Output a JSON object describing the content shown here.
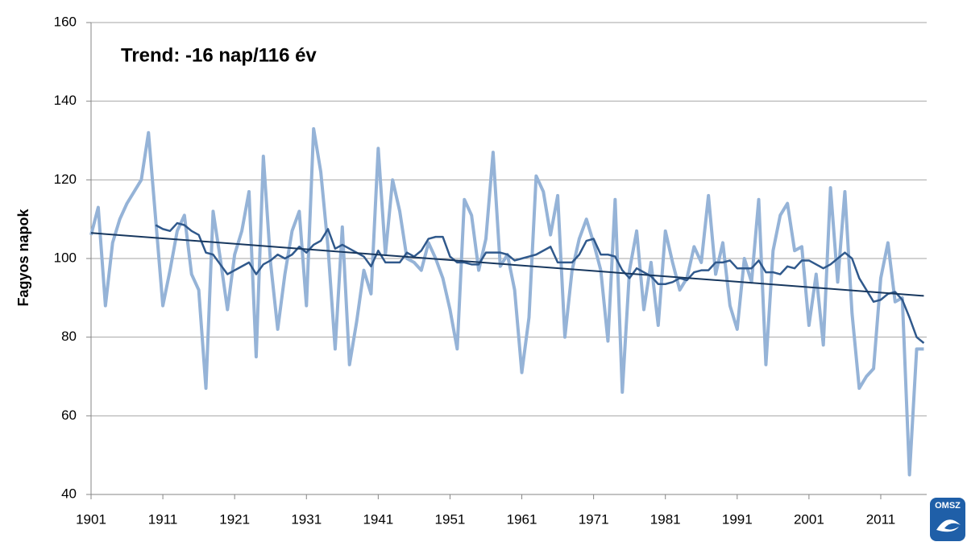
{
  "chart_data": {
    "type": "line",
    "annotation": "Trend: -16 nap/116 év",
    "y_label": "Fagyos napok",
    "logo_text": "OMSZ",
    "x": [
      1901,
      1902,
      1903,
      1904,
      1905,
      1906,
      1907,
      1908,
      1909,
      1910,
      1911,
      1912,
      1913,
      1914,
      1915,
      1916,
      1917,
      1918,
      1919,
      1920,
      1921,
      1922,
      1923,
      1924,
      1925,
      1926,
      1927,
      1928,
      1929,
      1930,
      1931,
      1932,
      1933,
      1934,
      1935,
      1936,
      1937,
      1938,
      1939,
      1940,
      1941,
      1942,
      1943,
      1944,
      1945,
      1946,
      1947,
      1948,
      1949,
      1950,
      1951,
      1952,
      1953,
      1954,
      1955,
      1956,
      1957,
      1958,
      1959,
      1960,
      1961,
      1962,
      1963,
      1964,
      1965,
      1966,
      1967,
      1968,
      1969,
      1970,
      1971,
      1972,
      1973,
      1974,
      1975,
      1976,
      1977,
      1978,
      1979,
      1980,
      1981,
      1982,
      1983,
      1984,
      1985,
      1986,
      1987,
      1988,
      1989,
      1990,
      1991,
      1992,
      1993,
      1994,
      1995,
      1996,
      1997,
      1998,
      1999,
      2000,
      2001,
      2002,
      2003,
      2004,
      2005,
      2006,
      2007,
      2008,
      2009,
      2010,
      2011,
      2012,
      2013,
      2014,
      2015,
      2016,
      2017
    ],
    "series": [
      {
        "color": "#95b3d7",
        "values": [
          106,
          113,
          88,
          104,
          110,
          114,
          117,
          120,
          132,
          110,
          88,
          97,
          107,
          111,
          96,
          92,
          67,
          112,
          100,
          87,
          101,
          107,
          117,
          75,
          126,
          99,
          82,
          96,
          107,
          112,
          88,
          133,
          122,
          103,
          77,
          108,
          73,
          84,
          97,
          91,
          128,
          101,
          120,
          112,
          100,
          99,
          97,
          104,
          100,
          95,
          87,
          77,
          115,
          111,
          97,
          105,
          127,
          98,
          101,
          92,
          71,
          85,
          121,
          117,
          106,
          116,
          80,
          97,
          105,
          110,
          104,
          97,
          79,
          115,
          66,
          97,
          107,
          87,
          99,
          83,
          107,
          99,
          92,
          95,
          103,
          99,
          116,
          96,
          104,
          88,
          82,
          100,
          94,
          115,
          73,
          102,
          111,
          114,
          102,
          103,
          83,
          96,
          78,
          118,
          94,
          117,
          86,
          67,
          70,
          72,
          95,
          104,
          89,
          90,
          45,
          77,
          77
        ]
      },
      {
        "color": "#30598c",
        "values": [
          null,
          null,
          null,
          null,
          null,
          null,
          null,
          null,
          null,
          108.5,
          107.5,
          107,
          109,
          108.5,
          107,
          106,
          101.5,
          101,
          98.5,
          96,
          97,
          98,
          99,
          96,
          98.5,
          99.5,
          101,
          100,
          101,
          103,
          101.5,
          103.5,
          104.5,
          107.5,
          102.5,
          103.5,
          102.5,
          101.5,
          100.5,
          98,
          102,
          99,
          99,
          99,
          101.5,
          100.5,
          102,
          105,
          105.5,
          105.5,
          100.5,
          99,
          99,
          98.5,
          98.5,
          101.5,
          101.5,
          101.5,
          101,
          99.5,
          100,
          100.5,
          101,
          102,
          103,
          99,
          99,
          99,
          101,
          104.5,
          105,
          101,
          101,
          100.5,
          97,
          95,
          97.5,
          96.5,
          95.5,
          93.5,
          93.5,
          94,
          95,
          94.5,
          96.5,
          97,
          97,
          99,
          99,
          99.5,
          97.5,
          97.5,
          97.5,
          99.5,
          96.5,
          96.5,
          96,
          98,
          97.5,
          99.5,
          99.5,
          98.5,
          97.5,
          98.5,
          100,
          101.5,
          100,
          95,
          92,
          89,
          89.5,
          91,
          91.5,
          89.5,
          85,
          80,
          78.5
        ]
      },
      {
        "color": "#17375e",
        "x": [
          1901,
          2017
        ],
        "values": [
          106.5,
          90.5
        ]
      }
    ],
    "xlim": [
      1901,
      2017.4
    ],
    "xticks": [
      1901,
      1911,
      1921,
      1931,
      1941,
      1951,
      1961,
      1971,
      1981,
      1991,
      2001,
      2011
    ],
    "ylim": [
      40,
      160
    ],
    "yticks": [
      40,
      60,
      80,
      100,
      120,
      140,
      160
    ],
    "grid": true
  }
}
